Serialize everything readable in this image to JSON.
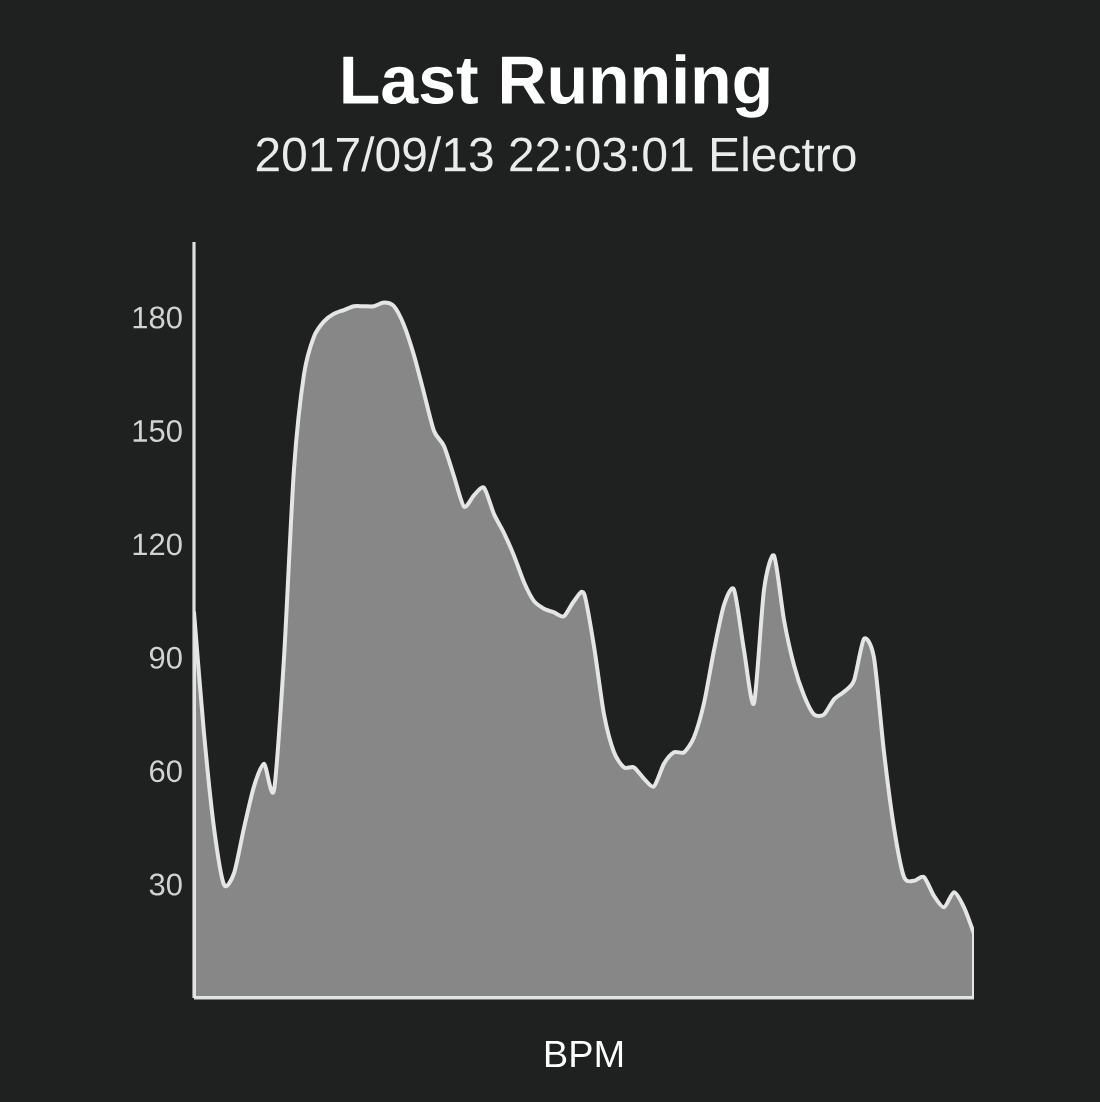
{
  "chart_data": {
    "type": "area",
    "title": "Last Running",
    "subtitle": "2017/09/13 22:03:01 Electro",
    "xlabel": "BPM",
    "categories": [
      null,
      null,
      null,
      null,
      null,
      null,
      null,
      null,
      null,
      null,
      null,
      null,
      null,
      null,
      null,
      null,
      null,
      null,
      null,
      null,
      null,
      null,
      null,
      null,
      null,
      null,
      null,
      null,
      null,
      null,
      null,
      null,
      null,
      null,
      null,
      null,
      null,
      null,
      null,
      null,
      null,
      null,
      null,
      null,
      null,
      null,
      null,
      null,
      null,
      null,
      null,
      null,
      null,
      null,
      null,
      null,
      null,
      null,
      null,
      null,
      null,
      null,
      null,
      null,
      null,
      null,
      null,
      null,
      null,
      null,
      null,
      null,
      null,
      null,
      null,
      null,
      null,
      null,
      null
    ],
    "values": [
      102,
      70,
      45,
      30,
      33,
      45,
      56,
      62,
      55,
      90,
      140,
      165,
      175,
      179,
      181,
      182,
      183,
      183,
      183,
      184,
      183,
      178,
      170,
      160,
      150,
      146,
      138,
      130,
      133,
      135,
      128,
      123,
      117,
      110,
      105,
      103,
      102,
      101,
      105,
      107,
      93,
      75,
      65,
      61,
      61,
      58,
      56,
      62,
      65,
      65,
      69,
      78,
      92,
      104,
      108,
      92,
      78,
      108,
      117,
      100,
      88,
      80,
      75,
      75,
      79,
      81,
      84,
      95,
      90,
      65,
      45,
      32,
      31,
      32,
      27,
      24,
      28,
      24,
      17
    ],
    "color": "#878787",
    "ylim": [
      0,
      200
    ],
    "yticks": [
      30,
      60,
      90,
      120,
      150,
      180
    ],
    "tick_labels": "y"
  }
}
